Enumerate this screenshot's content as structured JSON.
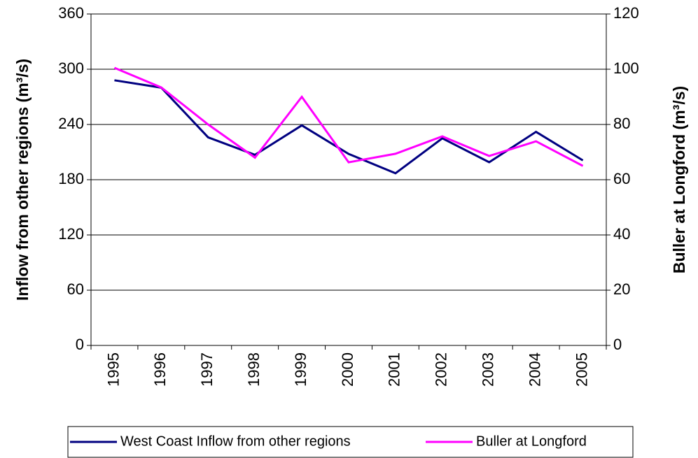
{
  "chart_data": {
    "type": "line",
    "categories": [
      "1995",
      "1996",
      "1997",
      "1998",
      "1999",
      "2000",
      "2001",
      "2002",
      "2003",
      "2004",
      "2005"
    ],
    "series": [
      {
        "name": "West Coast Inflow from other regions",
        "color": "#000080",
        "values": [
          288,
          280,
          226,
          207,
          239,
          208,
          187,
          225,
          199,
          232,
          201
        ]
      },
      {
        "name": "Buller at Longford",
        "color": "#ff00ff",
        "axis": "y2",
        "values": [
          100.5,
          93.4,
          80,
          68,
          90,
          66.3,
          69.4,
          75.7,
          68.6,
          73.9,
          65
        ]
      }
    ],
    "ylabel": "Inflow from other regions (m³/s)",
    "y2label": "Buller at Longford (m³/s)",
    "ylim": [
      0,
      360
    ],
    "yticks": [
      0,
      60,
      120,
      180,
      240,
      300,
      360
    ],
    "y2lim": [
      0,
      120
    ],
    "y2ticks": [
      0,
      20,
      40,
      60,
      80,
      100,
      120
    ],
    "grid": true,
    "legend": "bottom"
  }
}
